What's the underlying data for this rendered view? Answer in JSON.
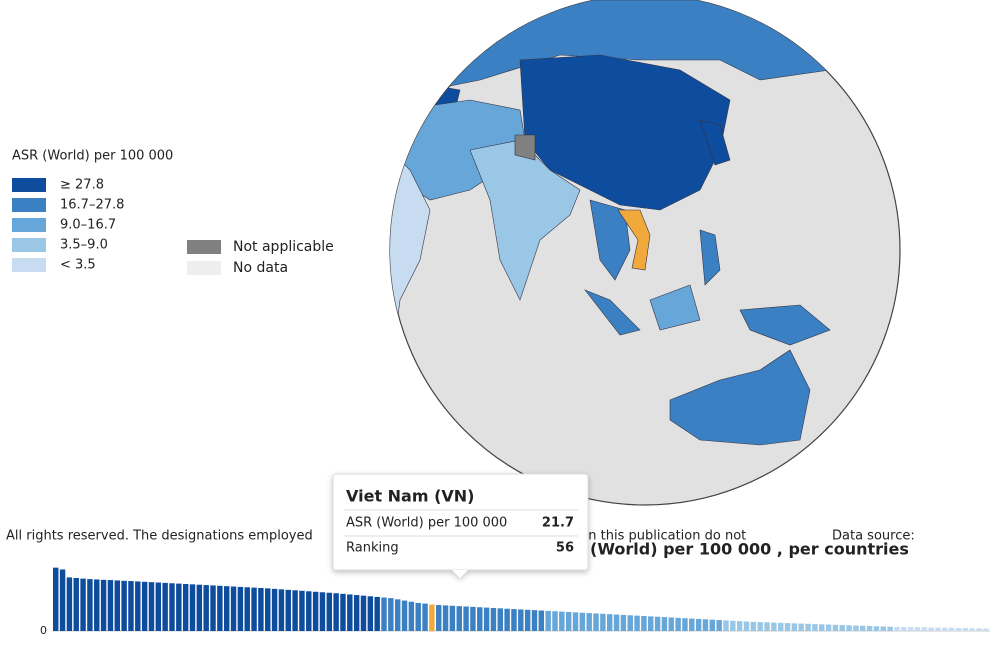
{
  "legend": {
    "title": "ASR (World) per 100 000",
    "items": [
      {
        "label": "≥ 27.8",
        "color": "#0e4d9e"
      },
      {
        "label": "16.7–27.8",
        "color": "#3b80c2"
      },
      {
        "label": "9.0–16.7",
        "color": "#66a6d9"
      },
      {
        "label": "3.5–9.0",
        "color": "#9ac7e6"
      },
      {
        "label": "< 3.5",
        "color": "#c7dcf0"
      }
    ],
    "breaks": [
      27.8,
      16.7,
      9.0,
      3.5
    ],
    "extra": [
      {
        "label": "Not applicable",
        "color": "#808080"
      },
      {
        "label": "No data",
        "color": "#eeeeee"
      }
    ]
  },
  "footer": {
    "left": "All rights reserved. The designations employed",
    "middle": "rial in this publication do not",
    "right": "Data source:"
  },
  "tooltip": {
    "title": "Viet Nam (VN)",
    "rows": [
      {
        "label": "ASR (World) per 100 000",
        "value": 21.7
      },
      {
        "label": "Ranking",
        "value": 56
      }
    ]
  },
  "chart_data": {
    "type": "bar",
    "title": "(World) per 100 000 , per countries",
    "highlight_color": "#f2a93b",
    "ylim": [
      0,
      55
    ],
    "yticks": [
      0
    ],
    "values": [
      52,
      50.5,
      44,
      43.5,
      43,
      42.6,
      42.3,
      42,
      41.8,
      41.5,
      41.2,
      41,
      40.7,
      40.4,
      40.1,
      39.8,
      39.5,
      39.2,
      38.9,
      38.6,
      38.3,
      38,
      37.7,
      37.4,
      37.1,
      36.8,
      36.5,
      36.2,
      35.9,
      35.6,
      35.3,
      35,
      34.6,
      34.2,
      33.8,
      33.4,
      33,
      32.6,
      32.2,
      31.8,
      31.4,
      31,
      30.5,
      30,
      29.5,
      29,
      28.5,
      28,
      27.5,
      27,
      26,
      25,
      24,
      23,
      22.5,
      21.7,
      21.3,
      21,
      20.7,
      20.4,
      20.1,
      19.8,
      19.5,
      19.2,
      18.9,
      18.6,
      18.3,
      18,
      17.7,
      17.4,
      17.1,
      16.8,
      16.5,
      16.2,
      15.9,
      15.6,
      15.3,
      15,
      14.7,
      14.4,
      14.1,
      13.8,
      13.5,
      13.2,
      12.9,
      12.6,
      12.3,
      12,
      11.7,
      11.4,
      11.1,
      10.8,
      10.5,
      10.2,
      9.9,
      9.6,
      9.3,
      9,
      8.7,
      8.4,
      8.1,
      7.8,
      7.5,
      7.3,
      7.1,
      6.9,
      6.7,
      6.5,
      6.3,
      6.1,
      5.9,
      5.7,
      5.5,
      5.3,
      5.1,
      4.9,
      4.7,
      4.5,
      4.3,
      4.1,
      3.9,
      3.7,
      3.5,
      3.4,
      3.3,
      3.2,
      3.1,
      3,
      2.9,
      2.8,
      2.7,
      2.6,
      2.5,
      2.4,
      2.3,
      2.2,
      2.1
    ]
  }
}
